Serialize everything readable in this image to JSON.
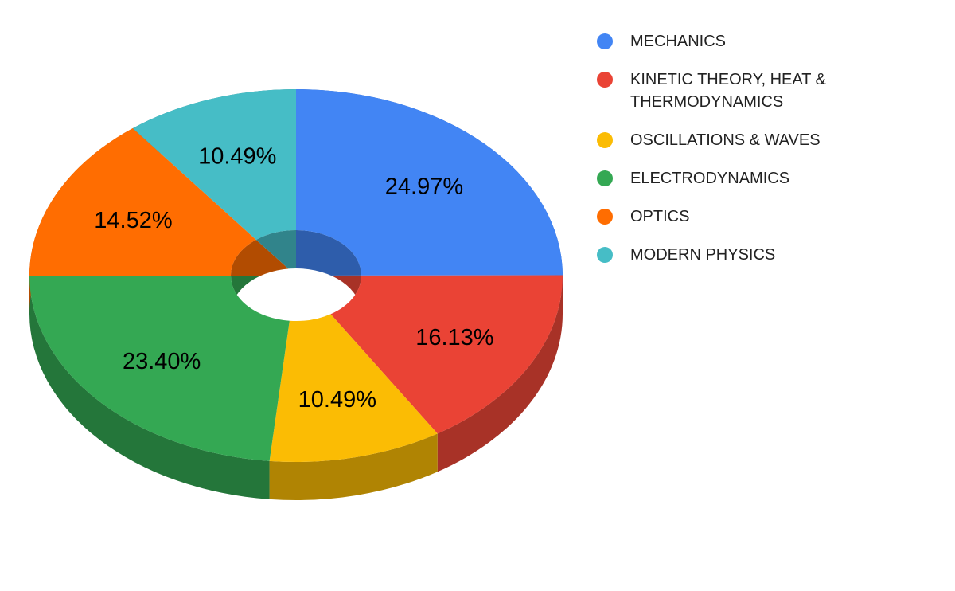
{
  "chart_data": {
    "type": "pie",
    "variant": "3d-donut",
    "title": "",
    "legend_position": "right",
    "start_angle_clock": "12-oclock-clockwise",
    "background_color": "#ffffff",
    "label_color": "#000000",
    "legend_text_color": "#222222",
    "categories": [
      "MECHANICS",
      "KINETIC THEORY, HEAT & THERMODYNAMICS",
      "OSCILLATIONS & WAVES",
      "ELECTRODYNAMICS",
      "OPTICS",
      "MODERN PHYSICS"
    ],
    "values": [
      24.97,
      16.13,
      10.49,
      23.4,
      14.52,
      10.49
    ],
    "labels": [
      "24.97%",
      "16.13%",
      "10.49%",
      "23.40%",
      "14.52%",
      "10.49%"
    ],
    "colors": [
      "#4285F4",
      "#EA4335",
      "#FBBC04",
      "#34A853",
      "#FF6D01",
      "#46BDC6"
    ],
    "side_colors": [
      "#2E5DAB",
      "#A83227",
      "#B08403",
      "#24763A",
      "#B24C01",
      "#31848B"
    ]
  }
}
